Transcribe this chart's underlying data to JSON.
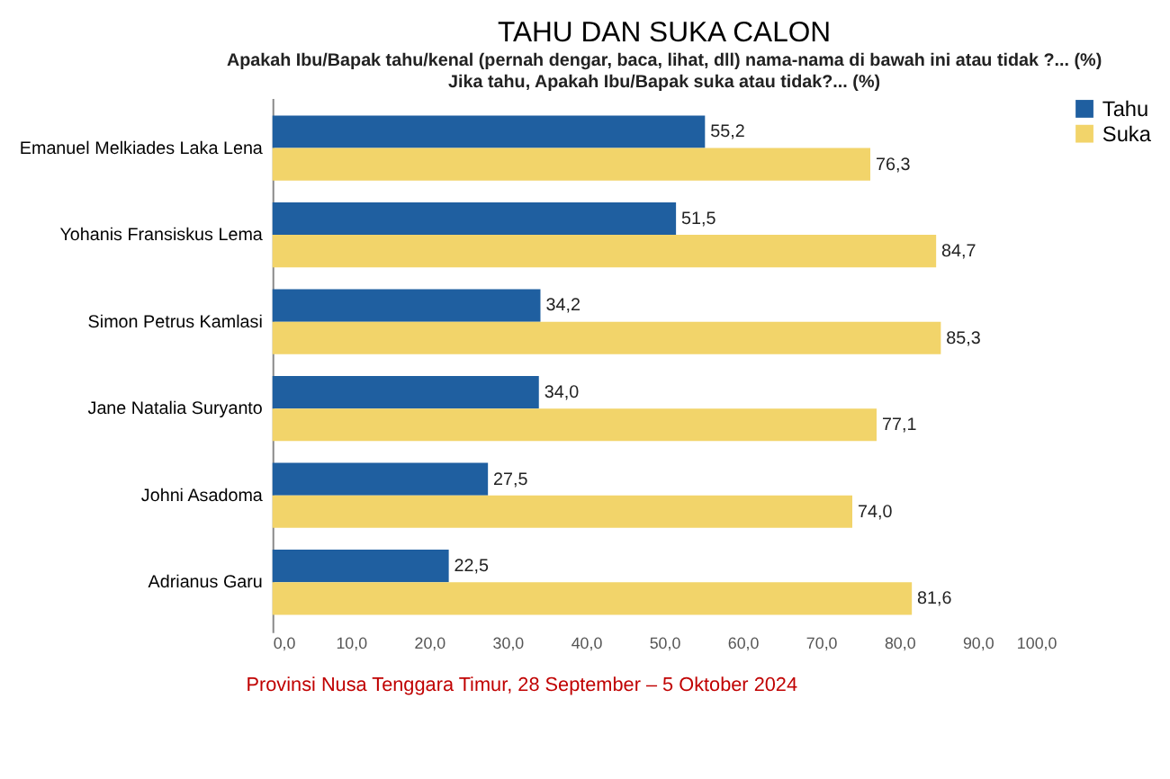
{
  "chart_data": {
    "type": "bar",
    "orientation": "horizontal",
    "title": "TAHU DAN SUKA CALON",
    "subtitle": "Apakah Ibu/Bapak tahu/kenal (pernah dengar, baca, lihat, dll) nama-nama di bawah ini atau tidak ?... (%)\nJika tahu, Apakah Ibu/Bapak suka atau tidak?... (%)",
    "categories": [
      "Emanuel Melkiades Laka Lena",
      "Yohanis Fransiskus Lema",
      "Simon Petrus Kamlasi",
      "Jane Natalia Suryanto",
      "Johni Asadoma",
      "Adrianus Garu"
    ],
    "series": [
      {
        "name": "Tahu",
        "color": "#1f5fa0",
        "values": [
          55.2,
          51.5,
          34.2,
          34.0,
          27.5,
          22.5
        ],
        "value_labels": [
          "55,2",
          "51,5",
          "34,2",
          "34,0",
          "27,5",
          "22,5"
        ]
      },
      {
        "name": "Suka",
        "color": "#f2d46a",
        "values": [
          76.3,
          84.7,
          85.3,
          77.1,
          74.0,
          81.6
        ],
        "value_labels": [
          "76,3",
          "84,7",
          "85,3",
          "77,1",
          "74,0",
          "81,6"
        ]
      }
    ],
    "xlim": [
      0,
      100
    ],
    "xticks": [
      {
        "value": 0,
        "label": "0,0"
      },
      {
        "value": 10,
        "label": "10,0"
      },
      {
        "value": 20,
        "label": "20,0"
      },
      {
        "value": 30,
        "label": "30,0"
      },
      {
        "value": 40,
        "label": "40,0"
      },
      {
        "value": 50,
        "label": "50,0"
      },
      {
        "value": 60,
        "label": "60,0"
      },
      {
        "value": 70,
        "label": "70,0"
      },
      {
        "value": 80,
        "label": "80,0"
      },
      {
        "value": 90,
        "label": "90,0"
      },
      {
        "value": 100,
        "label": "100,0"
      }
    ],
    "grid": false,
    "legend": "right",
    "annotations": [
      "Provinsi Nusa Tenggara Timur, 28 September – 5 Oktober 2024"
    ]
  }
}
